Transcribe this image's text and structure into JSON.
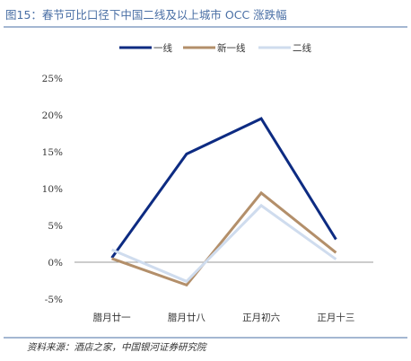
{
  "chart_data": {
    "type": "line",
    "title": "图15：春节可比口径下中国二线及以上城市 OCC 涨跌幅",
    "categories": [
      "腊月廿一",
      "腊月廿八",
      "正月初六",
      "正月十三"
    ],
    "y_ticks": [
      "25%",
      "20%",
      "15%",
      "10%",
      "5%",
      "0%",
      "-5%"
    ],
    "ylim": [
      -5,
      25
    ],
    "grid": false,
    "legend_position": "top-center",
    "series": [
      {
        "name": "一线",
        "color": "#0d2b82",
        "values": [
          0.6,
          14.7,
          19.5,
          3.1
        ]
      },
      {
        "name": "新一线",
        "color": "#b38f6a",
        "values": [
          0.5,
          -3.1,
          9.4,
          1.3
        ]
      },
      {
        "name": "二线",
        "color": "#cfdcee",
        "values": [
          1.7,
          -2.6,
          7.7,
          0.4
        ]
      }
    ],
    "source": "资料来源：酒店之家，中国银河证券研究院",
    "colors": {
      "title": "#4a6fa5",
      "rule": "#4a6fa5",
      "axis": "#9a9a9a"
    }
  }
}
